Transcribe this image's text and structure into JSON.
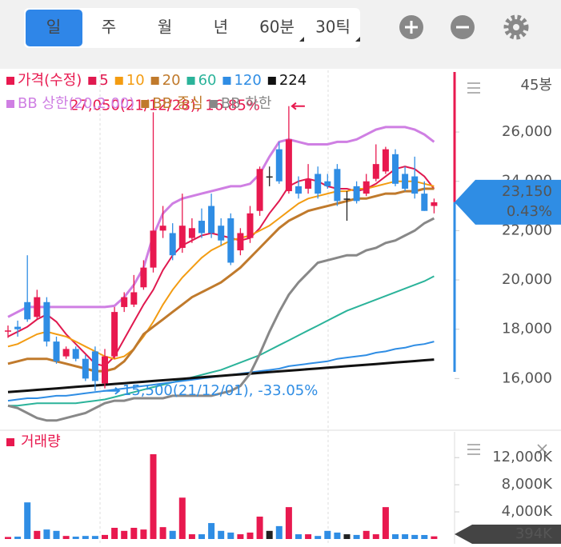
{
  "toolbar": {
    "tabs": [
      "일",
      "주",
      "월",
      "년",
      "60분",
      "30틱"
    ]
  },
  "chart_data": [
    {
      "type": "candlestick",
      "name": "가격(수정)",
      "period_label": "45봉",
      "up_color": "#e8194f",
      "down_color": "#2f8de4",
      "flat_color": "#222222",
      "open": [
        17900,
        18100,
        19100,
        18500,
        19100,
        17500,
        16900,
        17200,
        16800,
        17100,
        15800,
        16900,
        18900,
        19000,
        19700,
        20500,
        22000,
        21900,
        21300,
        21700,
        22400,
        23000,
        22200,
        22500,
        21200,
        21700,
        22800,
        24200,
        25300,
        23600,
        23800,
        23700,
        24300,
        24000,
        24500,
        23300,
        23800,
        23500,
        24100,
        24400,
        25100,
        24300,
        24200,
        23500,
        23000
      ],
      "high": [
        18150,
        18350,
        21000,
        19600,
        19300,
        17700,
        17300,
        17300,
        16950,
        17300,
        17200,
        18900,
        19500,
        20200,
        20800,
        26800,
        23000,
        22300,
        23500,
        22500,
        22900,
        23500,
        22500,
        22700,
        22100,
        23000,
        24600,
        24600,
        25600,
        27050,
        24200,
        24700,
        24600,
        24300,
        24700,
        23600,
        24000,
        24300,
        25500,
        25400,
        25300,
        24600,
        25000,
        24000,
        23300
      ],
      "low": [
        17650,
        17700,
        18300,
        18400,
        17300,
        16600,
        16800,
        16700,
        15900,
        15500,
        15600,
        16800,
        18700,
        18900,
        19600,
        20300,
        21700,
        20800,
        21100,
        21500,
        21700,
        21700,
        21400,
        20600,
        21000,
        21500,
        22600,
        23800,
        23900,
        23500,
        23300,
        23500,
        23300,
        23700,
        23000,
        22400,
        23100,
        23400,
        24000,
        24300,
        23800,
        23600,
        23300,
        22800,
        22700
      ],
      "close": [
        17950,
        18000,
        18400,
        19300,
        17500,
        16700,
        17200,
        16800,
        16000,
        15900,
        16900,
        18700,
        19300,
        19500,
        20500,
        22000,
        22200,
        21000,
        22200,
        22100,
        21900,
        21900,
        21600,
        20700,
        21900,
        22700,
        24500,
        24200,
        24000,
        25700,
        23500,
        24100,
        23500,
        23800,
        23200,
        23300,
        23200,
        24000,
        24700,
        25300,
        23900,
        23700,
        23500,
        22800,
        23150
      ],
      "series": [
        {
          "name": "5",
          "color": "#e0194f",
          "values": [
            17700,
            17900,
            18100,
            18400,
            18600,
            18300,
            17800,
            17400,
            17000,
            16600,
            16500,
            16900,
            17600,
            18300,
            19000,
            19600,
            20400,
            21000,
            21400,
            21600,
            21800,
            21900,
            21800,
            21700,
            21600,
            21700,
            22100,
            22700,
            23200,
            23800,
            24000,
            24100,
            24000,
            23800,
            23700,
            23700,
            23600,
            23700,
            23900,
            24200,
            24500,
            24600,
            24500,
            24200,
            23700
          ]
        },
        {
          "name": "10",
          "color": "#f39c12",
          "values": [
            17300,
            17400,
            17600,
            17800,
            17900,
            17800,
            17700,
            17500,
            17300,
            17100,
            16900,
            16800,
            16900,
            17200,
            17700,
            18300,
            19000,
            19600,
            20100,
            20500,
            20900,
            21200,
            21400,
            21600,
            21700,
            21800,
            22000,
            22200,
            22500,
            22800,
            23100,
            23300,
            23400,
            23500,
            23600,
            23600,
            23700,
            23700,
            23800,
            23900,
            24000,
            24000,
            24000,
            23900,
            23800
          ]
        },
        {
          "name": "20",
          "color": "#c07a2c",
          "values": [
            16600,
            16700,
            16800,
            16800,
            16800,
            16700,
            16600,
            16500,
            16400,
            16300,
            16300,
            16400,
            16700,
            17200,
            17800,
            18100,
            18400,
            18700,
            19000,
            19300,
            19500,
            19700,
            19900,
            20200,
            20500,
            20900,
            21300,
            21700,
            22100,
            22400,
            22600,
            22800,
            22900,
            23000,
            23100,
            23200,
            23300,
            23300,
            23400,
            23500,
            23500,
            23600,
            23600,
            23700,
            23700
          ]
        },
        {
          "name": "60",
          "color": "#2bb39a",
          "values": [
            14900,
            14900,
            14950,
            15000,
            15000,
            15000,
            15000,
            15000,
            15050,
            15100,
            15150,
            15250,
            15350,
            15450,
            15550,
            15650,
            15750,
            15850,
            15950,
            16050,
            16150,
            16250,
            16350,
            16500,
            16650,
            16800,
            16950,
            17150,
            17350,
            17550,
            17750,
            17950,
            18150,
            18350,
            18550,
            18750,
            18900,
            19050,
            19200,
            19350,
            19500,
            19650,
            19800,
            19950,
            20150
          ]
        },
        {
          "name": "120",
          "color": "#2f8de4",
          "values": [
            15100,
            15150,
            15200,
            15200,
            15250,
            15300,
            15300,
            15350,
            15400,
            15450,
            15500,
            15550,
            15600,
            15650,
            15700,
            15750,
            15800,
            15850,
            15900,
            15950,
            16000,
            16050,
            16100,
            16150,
            16200,
            16250,
            16300,
            16350,
            16400,
            16500,
            16550,
            16600,
            16650,
            16700,
            16800,
            16850,
            16900,
            16950,
            17050,
            17100,
            17200,
            17250,
            17350,
            17400,
            17500
          ]
        },
        {
          "name": "224",
          "color": "#111111",
          "values": [
            15450,
            15480,
            15510,
            15540,
            15570,
            15600,
            15630,
            15660,
            15690,
            15720,
            15750,
            15780,
            15810,
            15840,
            15870,
            15900,
            15930,
            15960,
            15990,
            16020,
            16050,
            16080,
            16110,
            16140,
            16170,
            16200,
            16230,
            16260,
            16290,
            16320,
            16350,
            16380,
            16410,
            16440,
            16470,
            16500,
            16530,
            16560,
            16590,
            16620,
            16650,
            16680,
            16710,
            16740,
            16770
          ]
        },
        {
          "name": "BB 상한(20,2.00)",
          "color": "#cf7fe3",
          "values": [
            18500,
            18700,
            18900,
            18900,
            18900,
            18900,
            18900,
            18900,
            18900,
            18900,
            18900,
            18950,
            19300,
            19800,
            20500,
            21800,
            22700,
            23100,
            23300,
            23400,
            23500,
            23600,
            23700,
            23800,
            23800,
            23900,
            24300,
            25000,
            25600,
            25700,
            25600,
            25500,
            25500,
            25500,
            25600,
            25600,
            25700,
            25900,
            26100,
            26200,
            26200,
            26200,
            26100,
            25900,
            25600
          ]
        },
        {
          "name": "BB 중심",
          "color": "#c07a2c",
          "values": [
            16600,
            16700,
            16800,
            16800,
            16800,
            16700,
            16600,
            16500,
            16400,
            16300,
            16300,
            16400,
            16700,
            17200,
            17800,
            18100,
            18400,
            18700,
            19000,
            19300,
            19500,
            19700,
            19900,
            20200,
            20500,
            20900,
            21300,
            21700,
            22100,
            22400,
            22600,
            22800,
            22900,
            23000,
            23100,
            23200,
            23300,
            23300,
            23400,
            23500,
            23500,
            23600,
            23600,
            23700,
            23700
          ]
        },
        {
          "name": "BB 하한",
          "color": "#888888",
          "values": [
            14900,
            14800,
            14600,
            14400,
            14300,
            14300,
            14400,
            14500,
            14600,
            14800,
            15000,
            15100,
            15100,
            15200,
            15200,
            15200,
            15200,
            15300,
            15300,
            15300,
            15300,
            15300,
            15400,
            15500,
            15700,
            16200,
            17000,
            17900,
            18700,
            19400,
            19900,
            20300,
            20700,
            20800,
            20900,
            21000,
            21000,
            21200,
            21300,
            21500,
            21600,
            21800,
            22000,
            22300,
            22500
          ]
        }
      ],
      "ylim": [
        14000,
        28500
      ],
      "yticks": [
        {
          "value": 16000,
          "label": "16,000"
        },
        {
          "value": 18000,
          "label": "18,000"
        },
        {
          "value": 20000,
          "label": "20,000"
        },
        {
          "value": 22000,
          "label": "22,000"
        },
        {
          "value": 24000,
          "label": "24,000"
        },
        {
          "value": 26000,
          "label": "26,000"
        }
      ],
      "annotations": [
        {
          "text": "27,050(21/12/28), 16.85%",
          "value": 27050,
          "color": "#e8194f"
        },
        {
          "text": "15,500(21/12/01), -33.05%",
          "value": 15500,
          "color": "#2f8de4"
        }
      ],
      "current": {
        "value": 23150,
        "label": "23,150",
        "change": "0.43%"
      }
    },
    {
      "type": "bar",
      "name": "거래량",
      "color": "#e8194f",
      "values": [
        300,
        350,
        5400,
        1200,
        1400,
        1200,
        450,
        350,
        450,
        450,
        600,
        1650,
        1200,
        1650,
        1400,
        12500,
        1750,
        1200,
        6100,
        700,
        700,
        2350,
        1200,
        950,
        700,
        950,
        3300,
        1200,
        1900,
        4700,
        700,
        700,
        450,
        1200,
        950,
        700,
        600,
        1200,
        700,
        4700,
        700,
        700,
        600,
        590,
        394
      ],
      "ylim": [
        0,
        15800
      ],
      "yticks": [
        {
          "value": 4000,
          "label": "4,000K"
        },
        {
          "value": 8000,
          "label": "8,000K"
        },
        {
          "value": 12000,
          "label": "12,000K"
        }
      ],
      "current": {
        "value": 394,
        "label": "394K"
      }
    }
  ]
}
